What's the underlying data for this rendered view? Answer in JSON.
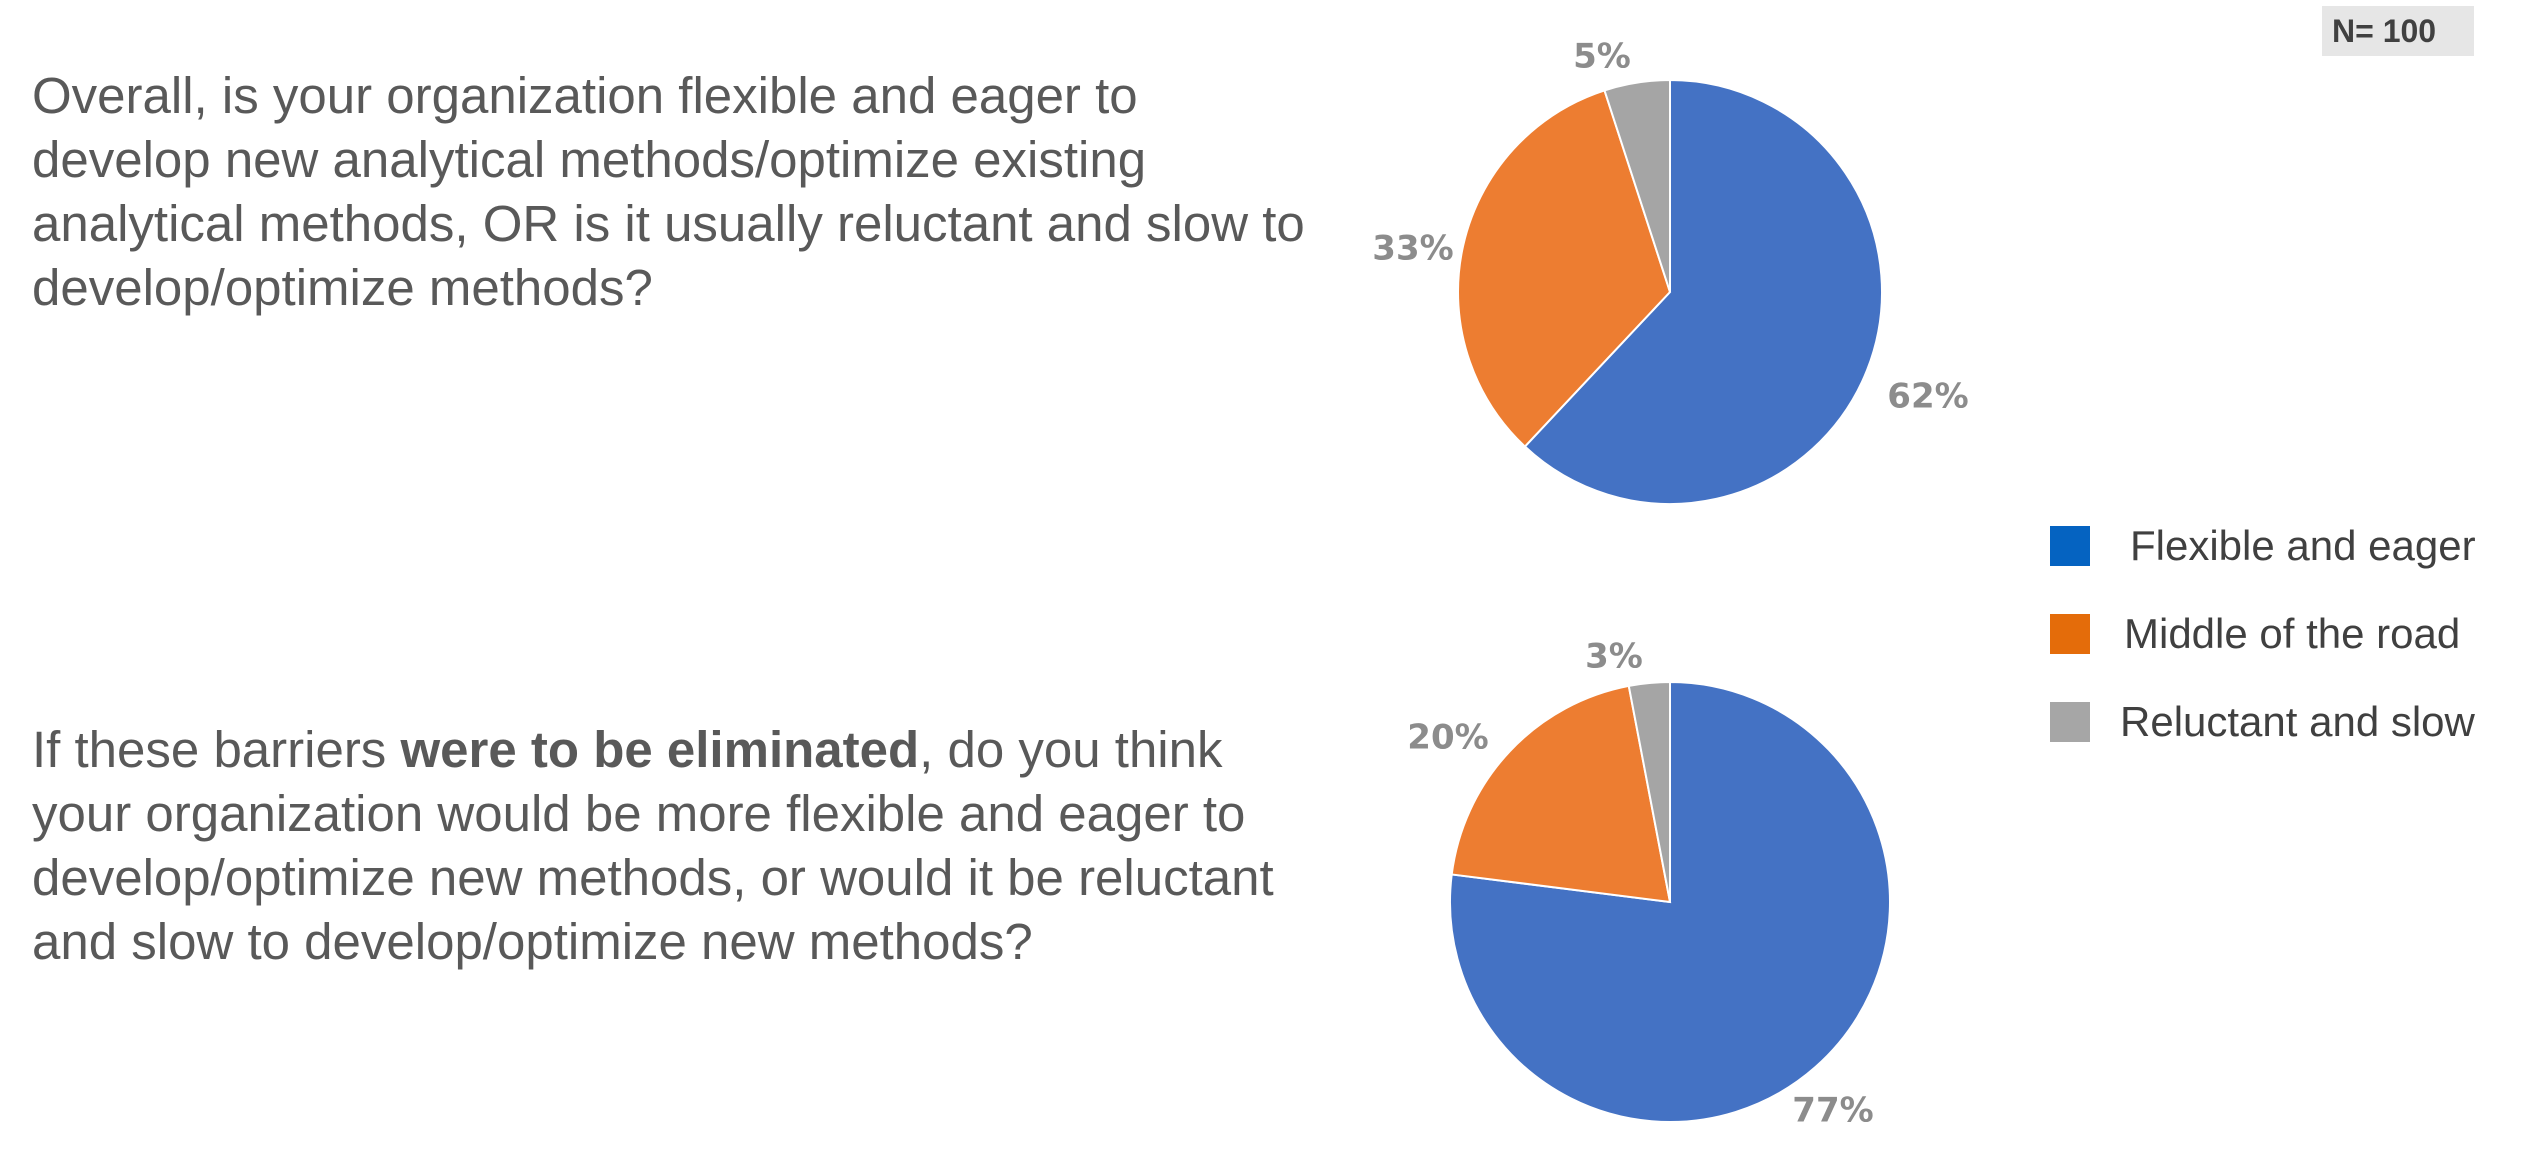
{
  "sample_size": "N= 100",
  "questions": [
    {
      "text": "Overall, is your organization flexible and eager to develop new analytical methods/optimize existing analytical methods, OR is it usually reluctant and slow to develop/optimize methods?"
    },
    {
      "before": "If these barriers ",
      "bold": "were to be eliminated",
      "after": ", do you think your organization would be more flexible and eager to develop/optimize new methods, or would it be reluctant and slow to develop/optimize new methods?"
    }
  ],
  "legend": [
    {
      "label": "Flexible and eager",
      "color": "#0563C1"
    },
    {
      "label": "Middle of the road",
      "color": "#E46C0A"
    },
    {
      "label": "Reluctant and slow",
      "color": "#A6A6A6"
    }
  ],
  "chart_data": [
    {
      "type": "pie",
      "categories": [
        "Flexible and eager",
        "Middle of the road",
        "Reluctant and slow"
      ],
      "values": [
        62,
        33,
        5
      ],
      "labels": [
        "62%",
        "33%",
        "5%"
      ],
      "colors": [
        "#4472C4",
        "#ED7D31",
        "#A5A5A5"
      ],
      "start": "12 o'clock",
      "direction": "clockwise"
    },
    {
      "type": "pie",
      "categories": [
        "Flexible and eager",
        "Middle of the road",
        "Reluctant and slow"
      ],
      "values": [
        77,
        20,
        3
      ],
      "labels": [
        "77%",
        "20%",
        "3%"
      ],
      "colors": [
        "#4472C4",
        "#ED7D31",
        "#A5A5A5"
      ],
      "start": "12 o'clock",
      "direction": "clockwise"
    }
  ]
}
